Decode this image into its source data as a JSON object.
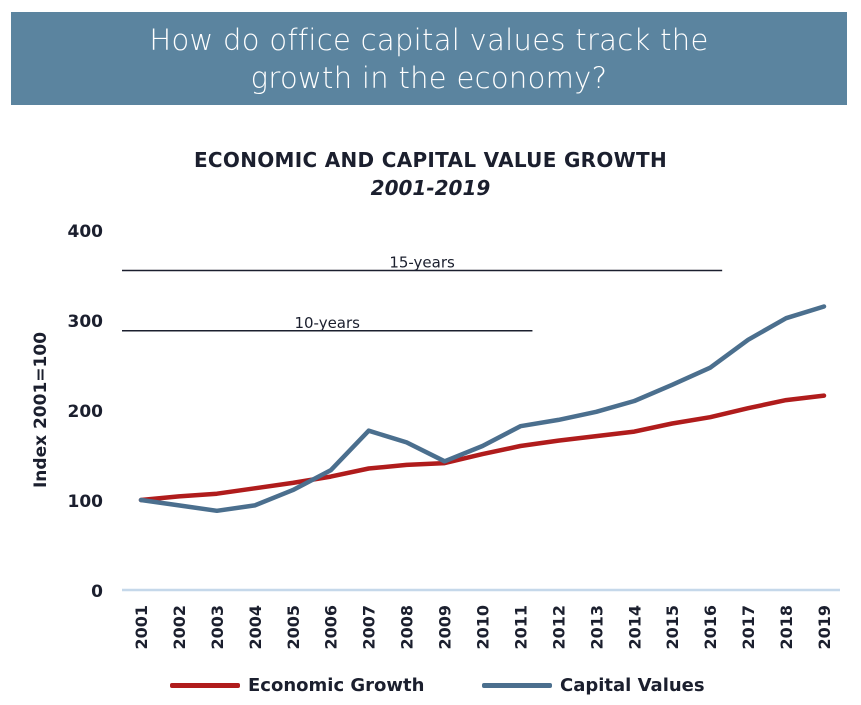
{
  "banner": {
    "title": "How do office capital values track the growth in the economy?"
  },
  "chart_data": {
    "type": "line",
    "title": "ECONOMIC AND CAPITAL VALUE GROWTH",
    "subtitle": "2001-2019",
    "xlabel": "",
    "ylabel": "Index 2001=100",
    "ylim": [
      0,
      400
    ],
    "yticks": [
      0,
      100,
      200,
      300,
      400
    ],
    "grid": false,
    "legend_position": "bottom",
    "categories": [
      "2001",
      "2002",
      "2003",
      "2004",
      "2005",
      "2006",
      "2007",
      "2008",
      "2009",
      "2010",
      "2011",
      "2012",
      "2013",
      "2014",
      "2015",
      "2016",
      "2017",
      "2018",
      "2019"
    ],
    "series": [
      {
        "name": "Economic Growth",
        "color": "#b01c1c",
        "values": [
          100,
          104,
          107,
          113,
          119,
          126,
          135,
          139,
          141,
          151,
          160,
          166,
          171,
          176,
          185,
          192,
          202,
          211,
          216
        ]
      },
      {
        "name": "Capital Values",
        "color": "#4b6f8e",
        "values": [
          100,
          94,
          88,
          94,
          111,
          133,
          177,
          164,
          143,
          160,
          182,
          189,
          198,
          210,
          228,
          247,
          278,
          302,
          315
        ]
      }
    ],
    "annotations": [
      {
        "label": "15-years",
        "value": 355,
        "from": "2001",
        "to": "2016"
      },
      {
        "label": "10-years",
        "value": 288,
        "from": "2001",
        "to": "2011"
      }
    ]
  }
}
